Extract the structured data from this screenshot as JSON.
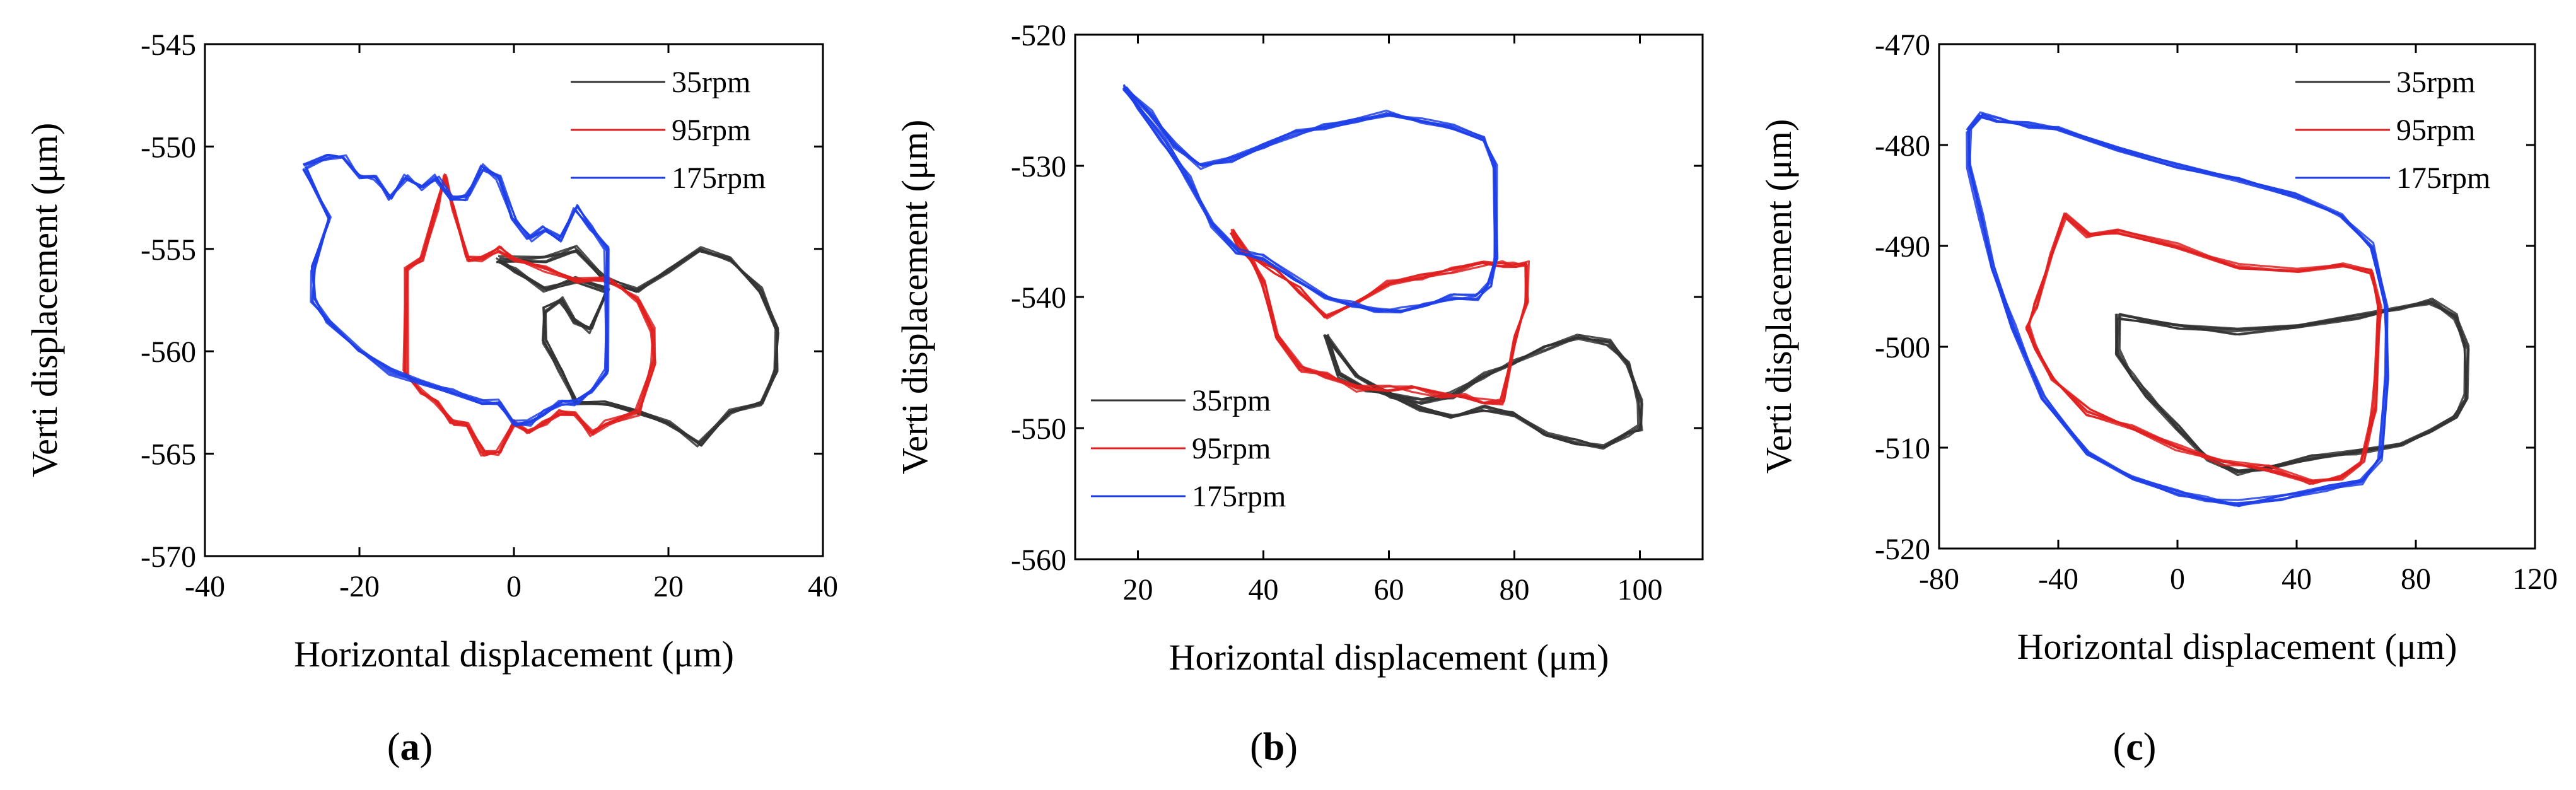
{
  "figure": {
    "panel_labels": [
      "a",
      "b",
      "c"
    ]
  },
  "chart_data": [
    {
      "type": "line",
      "panel": "a",
      "title": "",
      "xlabel": "Horizontal displacement (μm)",
      "ylabel": "Verti displacement (μm)",
      "xlim": [
        -40,
        40
      ],
      "ylim": [
        -570,
        -545
      ],
      "xticks": [
        -40,
        -20,
        0,
        20,
        40
      ],
      "yticks": [
        -545,
        -550,
        -555,
        -560,
        -565,
        -570
      ],
      "xtick_labels": [
        "-40",
        "-20",
        "0",
        "20",
        "40"
      ],
      "ytick_labels": [
        "-545",
        "-550",
        "-555",
        "-560",
        "-565",
        "-570"
      ],
      "grid": false,
      "legend_position": "top-right",
      "series": [
        {
          "name": "35rpm",
          "color": "#333333",
          "x": [
            -2,
            4,
            8,
            12,
            16,
            20,
            24,
            28,
            32,
            34,
            34,
            32,
            28,
            24,
            20,
            16,
            12,
            8,
            6,
            4,
            4,
            6,
            8,
            10,
            12,
            8,
            4,
            0,
            -2
          ],
          "y": [
            -555.5,
            -555.5,
            -555,
            -556.5,
            -557,
            -556,
            -555,
            -555.5,
            -557,
            -559,
            -561,
            -562.5,
            -563,
            -564.5,
            -563.5,
            -563,
            -562.5,
            -562.5,
            -561,
            -559.5,
            -558,
            -557.5,
            -558.5,
            -559,
            -557,
            -556.5,
            -557,
            -556,
            -555.5
          ]
        },
        {
          "name": "95rpm",
          "color": "#e02020",
          "x": [
            -14,
            -12,
            -10,
            -9,
            -8,
            -6,
            -4,
            -2,
            0,
            4,
            8,
            12,
            16,
            18,
            18,
            16,
            12,
            10,
            8,
            6,
            4,
            2,
            0,
            -2,
            -4,
            -6,
            -8,
            -10,
            -12,
            -14,
            -14
          ],
          "y": [
            -556,
            -555.5,
            -553,
            -551.5,
            -553,
            -555.5,
            -555.5,
            -555,
            -555.5,
            -556,
            -556.5,
            -556.5,
            -557.5,
            -559,
            -560.5,
            -563,
            -563.5,
            -564,
            -563,
            -563,
            -563.5,
            -564,
            -563.5,
            -565,
            -565,
            -563.5,
            -563.5,
            -562.5,
            -562,
            -561,
            -556
          ]
        },
        {
          "name": "175rpm",
          "color": "#1f3fe8",
          "x": [
            -27,
            -24,
            -22,
            -20,
            -18,
            -16,
            -14,
            -12,
            -10,
            -8,
            -6,
            -4,
            -2,
            0,
            2,
            4,
            6,
            8,
            10,
            12,
            12,
            10,
            8,
            6,
            4,
            2,
            0,
            -2,
            -4,
            -8,
            -12,
            -16,
            -20,
            -24,
            -26,
            -26,
            -24,
            -27
          ],
          "y": [
            -551,
            -550.5,
            -550.5,
            -551.5,
            -551.5,
            -552.5,
            -551.5,
            -552,
            -551.5,
            -552.5,
            -552.5,
            -551,
            -551.5,
            -553.5,
            -554.5,
            -554,
            -554.5,
            -553,
            -554,
            -555,
            -561,
            -562,
            -562.5,
            -562.5,
            -563,
            -563.5,
            -563.5,
            -562.5,
            -562.5,
            -562,
            -561.5,
            -561,
            -560,
            -558.5,
            -557.5,
            -556,
            -553.5,
            -551
          ]
        }
      ]
    },
    {
      "type": "line",
      "panel": "b",
      "title": "",
      "xlabel": "Horizontal displacement (μm)",
      "ylabel": "Verti displacement (μm)",
      "xlim": [
        10,
        110
      ],
      "ylim": [
        -560,
        -520
      ],
      "xticks": [
        20,
        40,
        60,
        80,
        100
      ],
      "yticks": [
        -520,
        -530,
        -540,
        -550,
        -560
      ],
      "xtick_labels": [
        "20",
        "40",
        "60",
        "80",
        "100"
      ],
      "ytick_labels": [
        "-520",
        "-530",
        "-540",
        "-550",
        "-560"
      ],
      "grid": false,
      "legend_position": "bottom-left",
      "series": [
        {
          "name": "35rpm",
          "color": "#333333",
          "x": [
            50,
            55,
            60,
            65,
            70,
            75,
            80,
            85,
            90,
            95,
            98,
            100,
            100,
            98,
            94,
            90,
            85,
            80,
            75,
            70,
            65,
            60,
            56,
            52,
            50
          ],
          "y": [
            -543,
            -546,
            -547.5,
            -548,
            -547.5,
            -546,
            -545,
            -544,
            -543,
            -543.5,
            -545,
            -548,
            -550,
            -550.5,
            -551.5,
            -551,
            -550.5,
            -549,
            -548.5,
            -549,
            -548.5,
            -547.5,
            -547,
            -546,
            -543
          ]
        },
        {
          "name": "95rpm",
          "color": "#e02020",
          "x": [
            35,
            38,
            42,
            46,
            50,
            55,
            60,
            65,
            70,
            75,
            78,
            80,
            82,
            82,
            80,
            78,
            75,
            72,
            68,
            64,
            60,
            55,
            50,
            46,
            42,
            40,
            38,
            36,
            35
          ],
          "y": [
            -535,
            -537,
            -538,
            -539.5,
            -541.5,
            -540.5,
            -539,
            -538.5,
            -538,
            -537.5,
            -537.5,
            -537.5,
            -537.5,
            -540.5,
            -543,
            -548,
            -548,
            -547.5,
            -547.5,
            -547,
            -547,
            -547,
            -546,
            -545.5,
            -543,
            -539,
            -537,
            -536,
            -535
          ]
        },
        {
          "name": "175rpm",
          "color": "#1f3fe8",
          "x": [
            18,
            22,
            26,
            30,
            35,
            40,
            45,
            50,
            55,
            60,
            65,
            70,
            75,
            77,
            77,
            76,
            74,
            70,
            66,
            62,
            58,
            54,
            50,
            45,
            40,
            36,
            32,
            28,
            24,
            20,
            18
          ],
          "y": [
            -524,
            -526,
            -528.5,
            -530,
            -529.5,
            -528.5,
            -527.5,
            -527,
            -526.5,
            -526,
            -526.5,
            -527,
            -528,
            -530,
            -537,
            -539,
            -540,
            -540,
            -540.5,
            -541,
            -541,
            -540.5,
            -540,
            -538.5,
            -537,
            -536.5,
            -534.5,
            -531,
            -528,
            -525.5,
            -524
          ]
        }
      ]
    },
    {
      "type": "line",
      "panel": "c",
      "title": "",
      "xlabel": "Horizontal displacement (μm)",
      "ylabel": "Verti displacement (μm)",
      "xlim": [
        -80,
        120
      ],
      "ylim": [
        -520,
        -470
      ],
      "xticks": [
        -80,
        -40,
        0,
        40,
        80,
        120
      ],
      "yticks": [
        -470,
        -480,
        -490,
        -500,
        -510,
        -520
      ],
      "xtick_labels": [
        "-80",
        "-40",
        "0",
        "40",
        "80",
        "120"
      ],
      "ytick_labels": [
        "-470",
        "-480",
        "-490",
        "-500",
        "-510",
        "-520"
      ],
      "grid": false,
      "legend_position": "top-right",
      "series": [
        {
          "name": "35rpm",
          "color": "#333333",
          "x": [
            -20,
            0,
            20,
            40,
            60,
            75,
            85,
            93,
            97,
            97,
            93,
            85,
            75,
            60,
            45,
            30,
            20,
            10,
            0,
            -10,
            -15,
            -20,
            -20
          ],
          "y": [
            -497,
            -498,
            -498.5,
            -498,
            -497,
            -496,
            -495.5,
            -497,
            -500,
            -505,
            -507,
            -508.5,
            -509.5,
            -510.5,
            -511,
            -512,
            -512.5,
            -511,
            -508,
            -505,
            -503,
            -500.5,
            -497
          ]
        },
        {
          "name": "95rpm",
          "color": "#e02020",
          "x": [
            -48,
            -42,
            -38,
            -30,
            -20,
            0,
            20,
            40,
            55,
            65,
            68,
            66,
            62,
            55,
            45,
            30,
            15,
            0,
            -15,
            -30,
            -42,
            -48,
            -50,
            -48
          ],
          "y": [
            -496,
            -491,
            -487,
            -489,
            -488.5,
            -490,
            -492,
            -492.5,
            -492,
            -492.5,
            -496,
            -506,
            -511.5,
            -513,
            -513.5,
            -512,
            -511.5,
            -510,
            -508,
            -506.5,
            -503,
            -500,
            -498,
            -496
          ]
        },
        {
          "name": "175rpm",
          "color": "#1f3fe8",
          "x": [
            -70,
            -66,
            -60,
            -50,
            -40,
            -20,
            0,
            20,
            40,
            55,
            65,
            70,
            70,
            68,
            62,
            50,
            35,
            20,
            10,
            0,
            -15,
            -30,
            -45,
            -55,
            -62,
            -66,
            -70,
            -70
          ],
          "y": [
            -478.5,
            -477,
            -477.5,
            -478,
            -478.5,
            -480.5,
            -482,
            -483.5,
            -485,
            -487,
            -490,
            -496,
            -503,
            -511,
            -513.5,
            -514,
            -515,
            -515.5,
            -515,
            -514.5,
            -513,
            -510.5,
            -505,
            -498,
            -492,
            -487,
            -482,
            -478.5
          ]
        }
      ]
    }
  ]
}
